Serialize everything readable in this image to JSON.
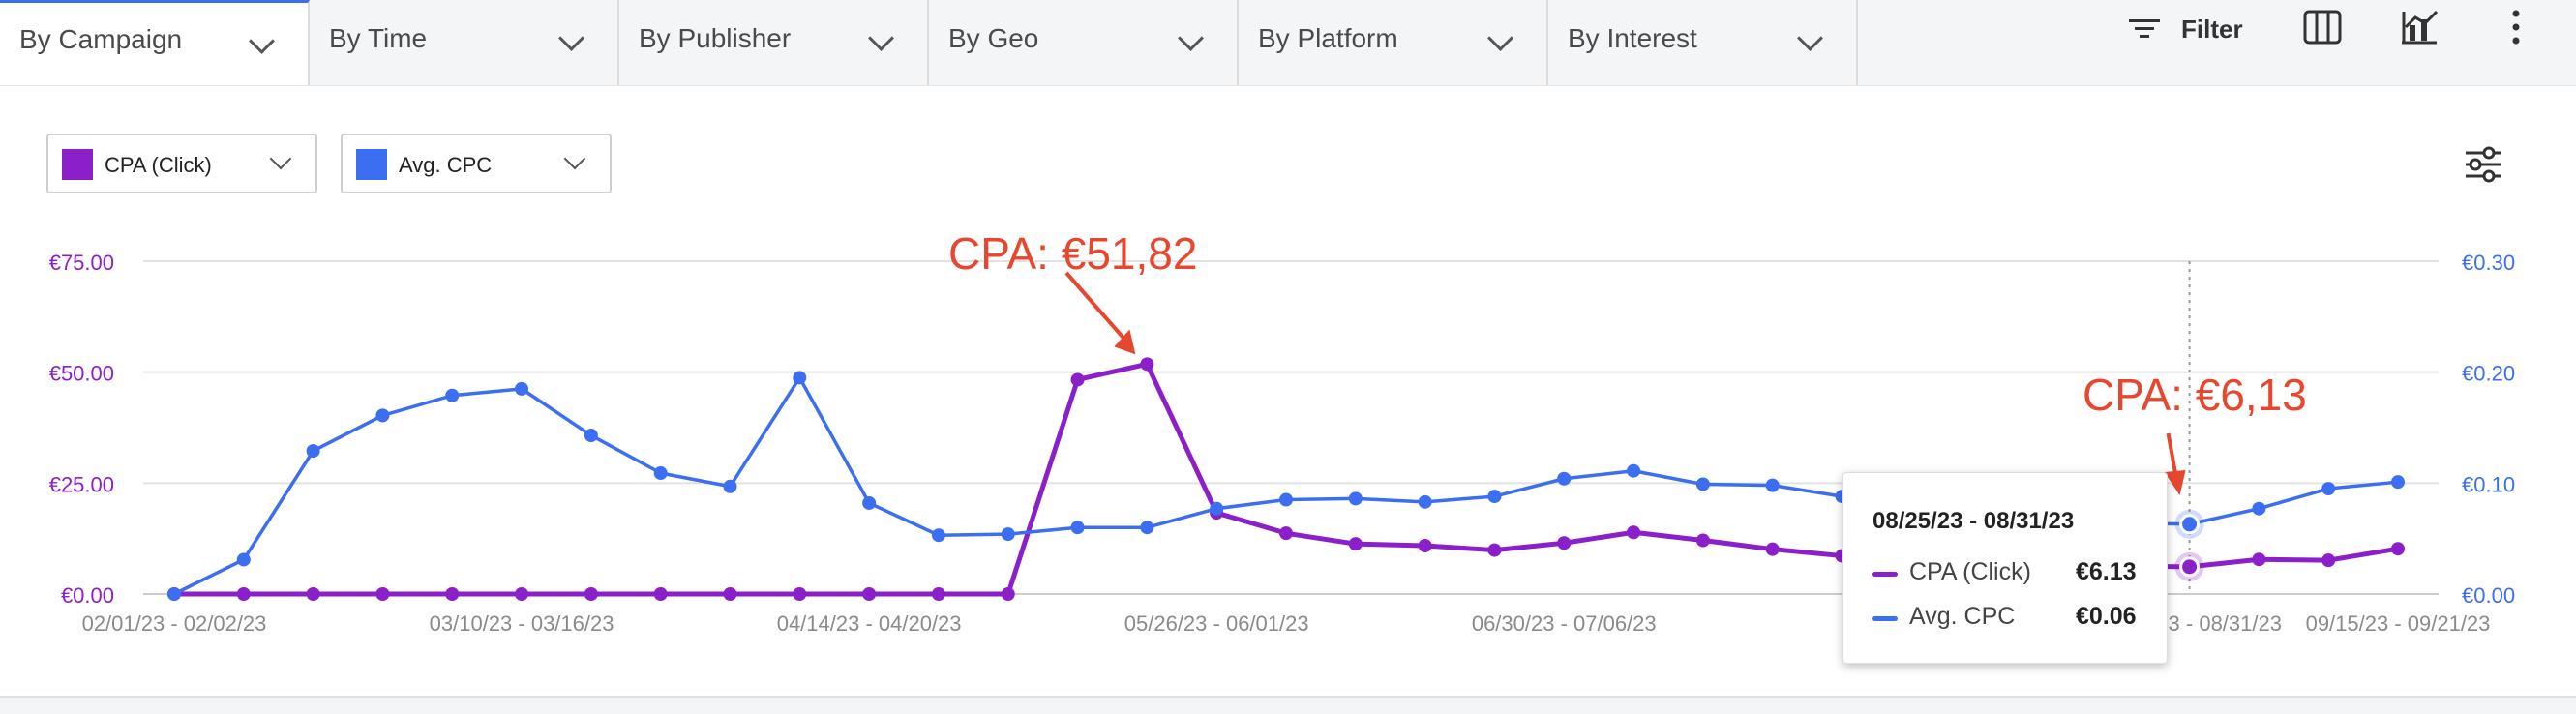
{
  "tabs": [
    {
      "label": "By Campaign",
      "active": true
    },
    {
      "label": "By Time",
      "active": false
    },
    {
      "label": "By Publisher",
      "active": false
    },
    {
      "label": "By Geo",
      "active": false
    },
    {
      "label": "By Platform",
      "active": false
    },
    {
      "label": "By Interest",
      "active": false
    }
  ],
  "toolbar": {
    "filter_label": "Filter",
    "icons": [
      "filter-icon",
      "columns-icon",
      "chart-settings-icon",
      "more-vertical-icon"
    ]
  },
  "metric_selects": [
    {
      "label": "CPA (Click)",
      "color": "#8b1fc9"
    },
    {
      "label": "Avg. CPC",
      "color": "#3b6ef0"
    }
  ],
  "colors": {
    "cpa": "#8b1fc9",
    "cpc": "#3b6ef0",
    "annotation": "#e8472f",
    "grid": "#e2e2e2"
  },
  "chart_data": {
    "type": "line",
    "x": [
      "02/01/23 - 02/02/23",
      "",
      "",
      "",
      "",
      "03/10/23 - 03/16/23",
      "",
      "",
      "",
      "",
      "04/14/23 - 04/20/23",
      "",
      "",
      "",
      "",
      "05/26/23 - 06/01/23",
      "",
      "",
      "",
      "",
      "06/30/23 - 07/06/23",
      "",
      "",
      "",
      "",
      "",
      "",
      "",
      "",
      "08/25/23 - 08/31/23",
      "",
      "",
      "09/15/23 - 09/21/23"
    ],
    "x_tick_labels": [
      "02/01/23 - 02/02/23",
      "03/10/23 - 03/16/23",
      "04/14/23 - 04/20/23",
      "05/26/23 - 06/01/23",
      "06/30/23 - 07/06/23",
      "09/15/23 - 09/21/23"
    ],
    "series": [
      {
        "name": "CPA (Click)",
        "axis": "left",
        "color": "#8b1fc9",
        "values": [
          0,
          0,
          0,
          0,
          0,
          0,
          0,
          0,
          0,
          0,
          0,
          0,
          0,
          48.3,
          51.82,
          18.3,
          13.7,
          11.3,
          10.9,
          9.9,
          11.5,
          13.9,
          12.1,
          10.1,
          8.6,
          6.9,
          6.1,
          6.2,
          6.3,
          6.13,
          7.8,
          7.6,
          10.2
        ]
      },
      {
        "name": "Avg. CPC",
        "axis": "right",
        "color": "#3b6ef0",
        "values": [
          0,
          0.031,
          0.129,
          0.161,
          0.179,
          0.185,
          0.143,
          0.109,
          0.097,
          0.195,
          0.082,
          0.053,
          0.054,
          0.06,
          0.06,
          0.077,
          0.085,
          0.086,
          0.083,
          0.088,
          0.104,
          0.111,
          0.099,
          0.098,
          0.088,
          0.076,
          0.07,
          0.064,
          0.064,
          0.063,
          0.077,
          0.095,
          0.101
        ]
      }
    ],
    "y_left": {
      "ticks": [
        "€0.00",
        "€25.00",
        "€50.00",
        "€75.00"
      ],
      "range": [
        0,
        75
      ]
    },
    "y_right": {
      "ticks": [
        "€0.00",
        "€0.10",
        "€0.20",
        "€0.30"
      ],
      "range": [
        0,
        0.3
      ]
    },
    "grid": true,
    "annotations": [
      {
        "text": "CPA: €51,82",
        "point_index": 14
      },
      {
        "text": "CPA: €6,13",
        "point_index": 29
      }
    ],
    "tooltip": {
      "title": "08/25/23 - 08/31/23",
      "rows": [
        {
          "name": "CPA (Click)",
          "value": "€6.13"
        },
        {
          "name": "Avg. CPC",
          "value": "€0.06"
        }
      ],
      "point_index": 29
    }
  }
}
